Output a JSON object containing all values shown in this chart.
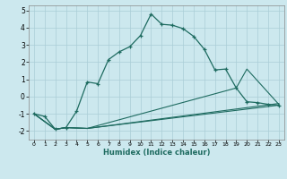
{
  "xlabel": "Humidex (Indice chaleur)",
  "bg_color": "#cce8ee",
  "line_color": "#1e6b60",
  "grid_color": "#aacdd6",
  "spine_color": "#888888",
  "line1_x": [
    0,
    1,
    2,
    3,
    4,
    5,
    6,
    7,
    8,
    9,
    10,
    11,
    12,
    13,
    14,
    15,
    16,
    17,
    18,
    19,
    20,
    21,
    22,
    23
  ],
  "line1_y": [
    -1.0,
    -1.15,
    -1.9,
    -1.8,
    -0.85,
    0.85,
    0.75,
    2.15,
    2.6,
    2.9,
    3.55,
    4.8,
    4.2,
    4.15,
    3.95,
    3.5,
    2.75,
    1.55,
    1.6,
    0.5,
    -0.3,
    -0.35,
    -0.45,
    -0.5
  ],
  "line2_x": [
    0,
    2,
    3,
    5,
    23
  ],
  "line2_y": [
    -1.0,
    -1.9,
    -1.8,
    -1.85,
    -0.5
  ],
  "line3_x": [
    0,
    2,
    3,
    5,
    23
  ],
  "line3_y": [
    -1.0,
    -1.9,
    -1.8,
    -1.85,
    -0.4
  ],
  "line4_x": [
    0,
    2,
    3,
    5,
    19,
    20,
    23
  ],
  "line4_y": [
    -1.0,
    -1.9,
    -1.8,
    -1.85,
    0.5,
    1.6,
    -0.45
  ],
  "ylim": [
    -2.5,
    5.3
  ],
  "xlim": [
    -0.5,
    23.5
  ],
  "yticks": [
    -2,
    -1,
    0,
    1,
    2,
    3,
    4,
    5
  ],
  "xticks": [
    0,
    1,
    2,
    3,
    4,
    5,
    6,
    7,
    8,
    9,
    10,
    11,
    12,
    13,
    14,
    15,
    16,
    17,
    18,
    19,
    20,
    21,
    22,
    23
  ]
}
